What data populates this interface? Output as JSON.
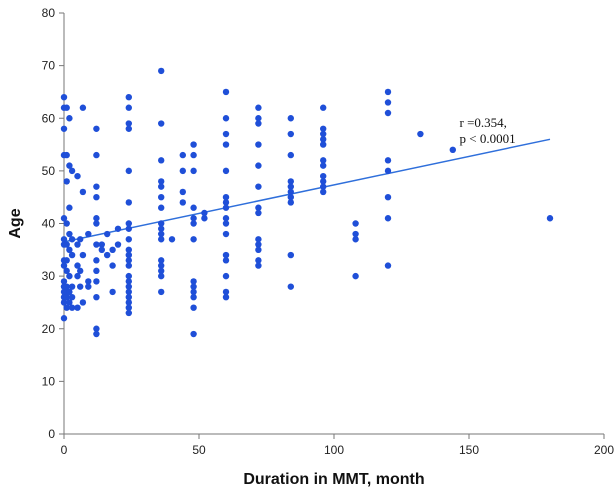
{
  "chart_data": {
    "type": "scatter",
    "xlabel": "Duration in MMT, month",
    "ylabel": "Age",
    "xlim": [
      0,
      200
    ],
    "ylim": [
      0,
      80
    ],
    "x_ticks": [
      0,
      50,
      100,
      150,
      200
    ],
    "y_ticks": [
      0,
      10,
      20,
      30,
      40,
      50,
      60,
      70,
      80
    ],
    "grid": false,
    "point_color": "#1f4fd8",
    "trend_color": "#2f6fdb",
    "annotation": {
      "line1": "r =0.354,",
      "line2": "p < 0.0001",
      "x": 145,
      "y": 58
    },
    "trend_line": {
      "x": [
        0,
        180
      ],
      "y": [
        36.5,
        56
      ]
    },
    "points": [
      [
        0,
        64
      ],
      [
        0,
        62
      ],
      [
        0,
        58
      ],
      [
        0,
        53
      ],
      [
        0,
        41
      ],
      [
        0,
        37
      ],
      [
        0,
        36
      ],
      [
        0,
        33
      ],
      [
        0,
        32
      ],
      [
        0,
        29
      ],
      [
        0,
        28
      ],
      [
        0,
        27
      ],
      [
        0,
        26
      ],
      [
        0,
        25
      ],
      [
        0,
        22
      ],
      [
        1,
        62
      ],
      [
        1,
        53
      ],
      [
        1,
        48
      ],
      [
        1,
        40
      ],
      [
        1,
        36
      ],
      [
        1,
        33
      ],
      [
        1,
        31
      ],
      [
        1,
        28
      ],
      [
        1,
        27
      ],
      [
        1,
        26
      ],
      [
        1,
        24
      ],
      [
        2,
        60
      ],
      [
        2,
        51
      ],
      [
        2,
        43
      ],
      [
        2,
        38
      ],
      [
        2,
        35
      ],
      [
        2,
        30
      ],
      [
        2,
        27
      ],
      [
        2,
        25
      ],
      [
        3,
        50
      ],
      [
        3,
        37
      ],
      [
        3,
        34
      ],
      [
        3,
        28
      ],
      [
        3,
        26
      ],
      [
        3,
        24
      ],
      [
        5,
        49
      ],
      [
        5,
        36
      ],
      [
        5,
        32
      ],
      [
        5,
        30
      ],
      [
        5,
        24
      ],
      [
        6,
        37
      ],
      [
        6,
        31
      ],
      [
        6,
        28
      ],
      [
        7,
        62
      ],
      [
        7,
        46
      ],
      [
        7,
        34
      ],
      [
        7,
        25
      ],
      [
        9,
        38
      ],
      [
        9,
        29
      ],
      [
        9,
        28
      ],
      [
        12,
        58
      ],
      [
        12,
        53
      ],
      [
        12,
        47
      ],
      [
        12,
        45
      ],
      [
        12,
        41
      ],
      [
        12,
        40
      ],
      [
        12,
        36
      ],
      [
        12,
        33
      ],
      [
        12,
        31
      ],
      [
        12,
        29
      ],
      [
        12,
        26
      ],
      [
        12,
        20
      ],
      [
        12,
        19
      ],
      [
        14,
        36
      ],
      [
        14,
        35
      ],
      [
        16,
        38
      ],
      [
        16,
        34
      ],
      [
        18,
        35
      ],
      [
        18,
        32
      ],
      [
        18,
        27
      ],
      [
        20,
        39
      ],
      [
        20,
        36
      ],
      [
        24,
        64
      ],
      [
        24,
        62
      ],
      [
        24,
        59
      ],
      [
        24,
        58
      ],
      [
        24,
        50
      ],
      [
        24,
        44
      ],
      [
        24,
        40
      ],
      [
        24,
        39
      ],
      [
        24,
        37
      ],
      [
        24,
        35
      ],
      [
        24,
        34
      ],
      [
        24,
        33
      ],
      [
        24,
        32
      ],
      [
        24,
        30
      ],
      [
        24,
        29
      ],
      [
        24,
        28
      ],
      [
        24,
        27
      ],
      [
        24,
        26
      ],
      [
        24,
        25
      ],
      [
        24,
        24
      ],
      [
        24,
        23
      ],
      [
        36,
        69
      ],
      [
        36,
        59
      ],
      [
        36,
        52
      ],
      [
        36,
        48
      ],
      [
        36,
        47
      ],
      [
        36,
        45
      ],
      [
        36,
        43
      ],
      [
        36,
        40
      ],
      [
        36,
        39
      ],
      [
        36,
        38
      ],
      [
        36,
        37
      ],
      [
        36,
        33
      ],
      [
        36,
        32
      ],
      [
        36,
        31
      ],
      [
        36,
        30
      ],
      [
        36,
        27
      ],
      [
        40,
        37
      ],
      [
        44,
        53
      ],
      [
        44,
        50
      ],
      [
        44,
        46
      ],
      [
        44,
        44
      ],
      [
        48,
        55
      ],
      [
        48,
        53
      ],
      [
        48,
        50
      ],
      [
        48,
        43
      ],
      [
        48,
        41
      ],
      [
        48,
        40
      ],
      [
        48,
        37
      ],
      [
        48,
        29
      ],
      [
        48,
        28
      ],
      [
        48,
        27
      ],
      [
        48,
        26
      ],
      [
        48,
        24
      ],
      [
        48,
        19
      ],
      [
        52,
        42
      ],
      [
        52,
        41
      ],
      [
        60,
        65
      ],
      [
        60,
        60
      ],
      [
        60,
        57
      ],
      [
        60,
        55
      ],
      [
        60,
        50
      ],
      [
        60,
        45
      ],
      [
        60,
        44
      ],
      [
        60,
        43
      ],
      [
        60,
        41
      ],
      [
        60,
        40
      ],
      [
        60,
        38
      ],
      [
        60,
        34
      ],
      [
        60,
        33
      ],
      [
        60,
        30
      ],
      [
        60,
        27
      ],
      [
        60,
        26
      ],
      [
        72,
        62
      ],
      [
        72,
        60
      ],
      [
        72,
        59
      ],
      [
        72,
        55
      ],
      [
        72,
        51
      ],
      [
        72,
        47
      ],
      [
        72,
        43
      ],
      [
        72,
        42
      ],
      [
        72,
        37
      ],
      [
        72,
        36
      ],
      [
        72,
        35
      ],
      [
        72,
        33
      ],
      [
        72,
        32
      ],
      [
        84,
        60
      ],
      [
        84,
        57
      ],
      [
        84,
        53
      ],
      [
        84,
        48
      ],
      [
        84,
        47
      ],
      [
        84,
        46
      ],
      [
        84,
        45
      ],
      [
        84,
        44
      ],
      [
        84,
        34
      ],
      [
        84,
        28
      ],
      [
        96,
        62
      ],
      [
        96,
        58
      ],
      [
        96,
        57
      ],
      [
        96,
        56
      ],
      [
        96,
        55
      ],
      [
        96,
        52
      ],
      [
        96,
        51
      ],
      [
        96,
        49
      ],
      [
        96,
        48
      ],
      [
        96,
        47
      ],
      [
        96,
        46
      ],
      [
        108,
        40
      ],
      [
        108,
        38
      ],
      [
        108,
        37
      ],
      [
        108,
        30
      ],
      [
        120,
        65
      ],
      [
        120,
        63
      ],
      [
        120,
        61
      ],
      [
        120,
        52
      ],
      [
        120,
        50
      ],
      [
        120,
        45
      ],
      [
        120,
        41
      ],
      [
        120,
        32
      ],
      [
        132,
        57
      ],
      [
        144,
        54
      ],
      [
        180,
        41
      ]
    ]
  }
}
